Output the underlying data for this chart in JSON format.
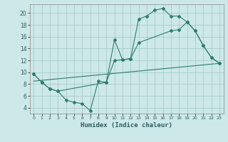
{
  "xlabel": "Humidex (Indice chaleur)",
  "background_color": "#cce8e8",
  "grid_color": "#b8d8d8",
  "line_color": "#2e7d6e",
  "ylim": [
    3.0,
    21.5
  ],
  "xlim": [
    -0.5,
    23.5
  ],
  "yticks": [
    4,
    6,
    8,
    10,
    12,
    14,
    16,
    18,
    20
  ],
  "xticks": [
    0,
    1,
    2,
    3,
    4,
    5,
    6,
    7,
    8,
    9,
    10,
    11,
    12,
    13,
    14,
    15,
    16,
    17,
    18,
    19,
    20,
    21,
    22,
    23
  ],
  "line1_x": [
    0,
    1,
    2,
    3,
    4,
    5,
    6,
    7,
    8,
    9,
    10,
    11,
    12,
    13,
    14,
    15,
    16,
    17,
    18,
    19,
    20,
    21,
    22,
    23
  ],
  "line1_y": [
    9.7,
    8.3,
    7.2,
    6.8,
    5.3,
    4.9,
    4.7,
    3.5,
    8.5,
    8.3,
    15.5,
    12.1,
    12.3,
    19.0,
    19.5,
    20.5,
    20.8,
    19.5,
    19.5,
    18.5,
    17.0,
    14.5,
    12.5,
    11.5
  ],
  "line2_x": [
    0,
    1,
    2,
    3,
    9,
    10,
    11,
    12,
    13,
    17,
    18,
    19,
    20,
    21,
    22,
    23
  ],
  "line2_y": [
    9.7,
    8.3,
    7.2,
    6.8,
    8.3,
    12.0,
    12.1,
    12.3,
    15.0,
    17.0,
    17.2,
    18.5,
    17.0,
    14.5,
    12.5,
    11.5
  ],
  "line3_x": [
    0,
    23
  ],
  "line3_y": [
    8.5,
    11.5
  ]
}
